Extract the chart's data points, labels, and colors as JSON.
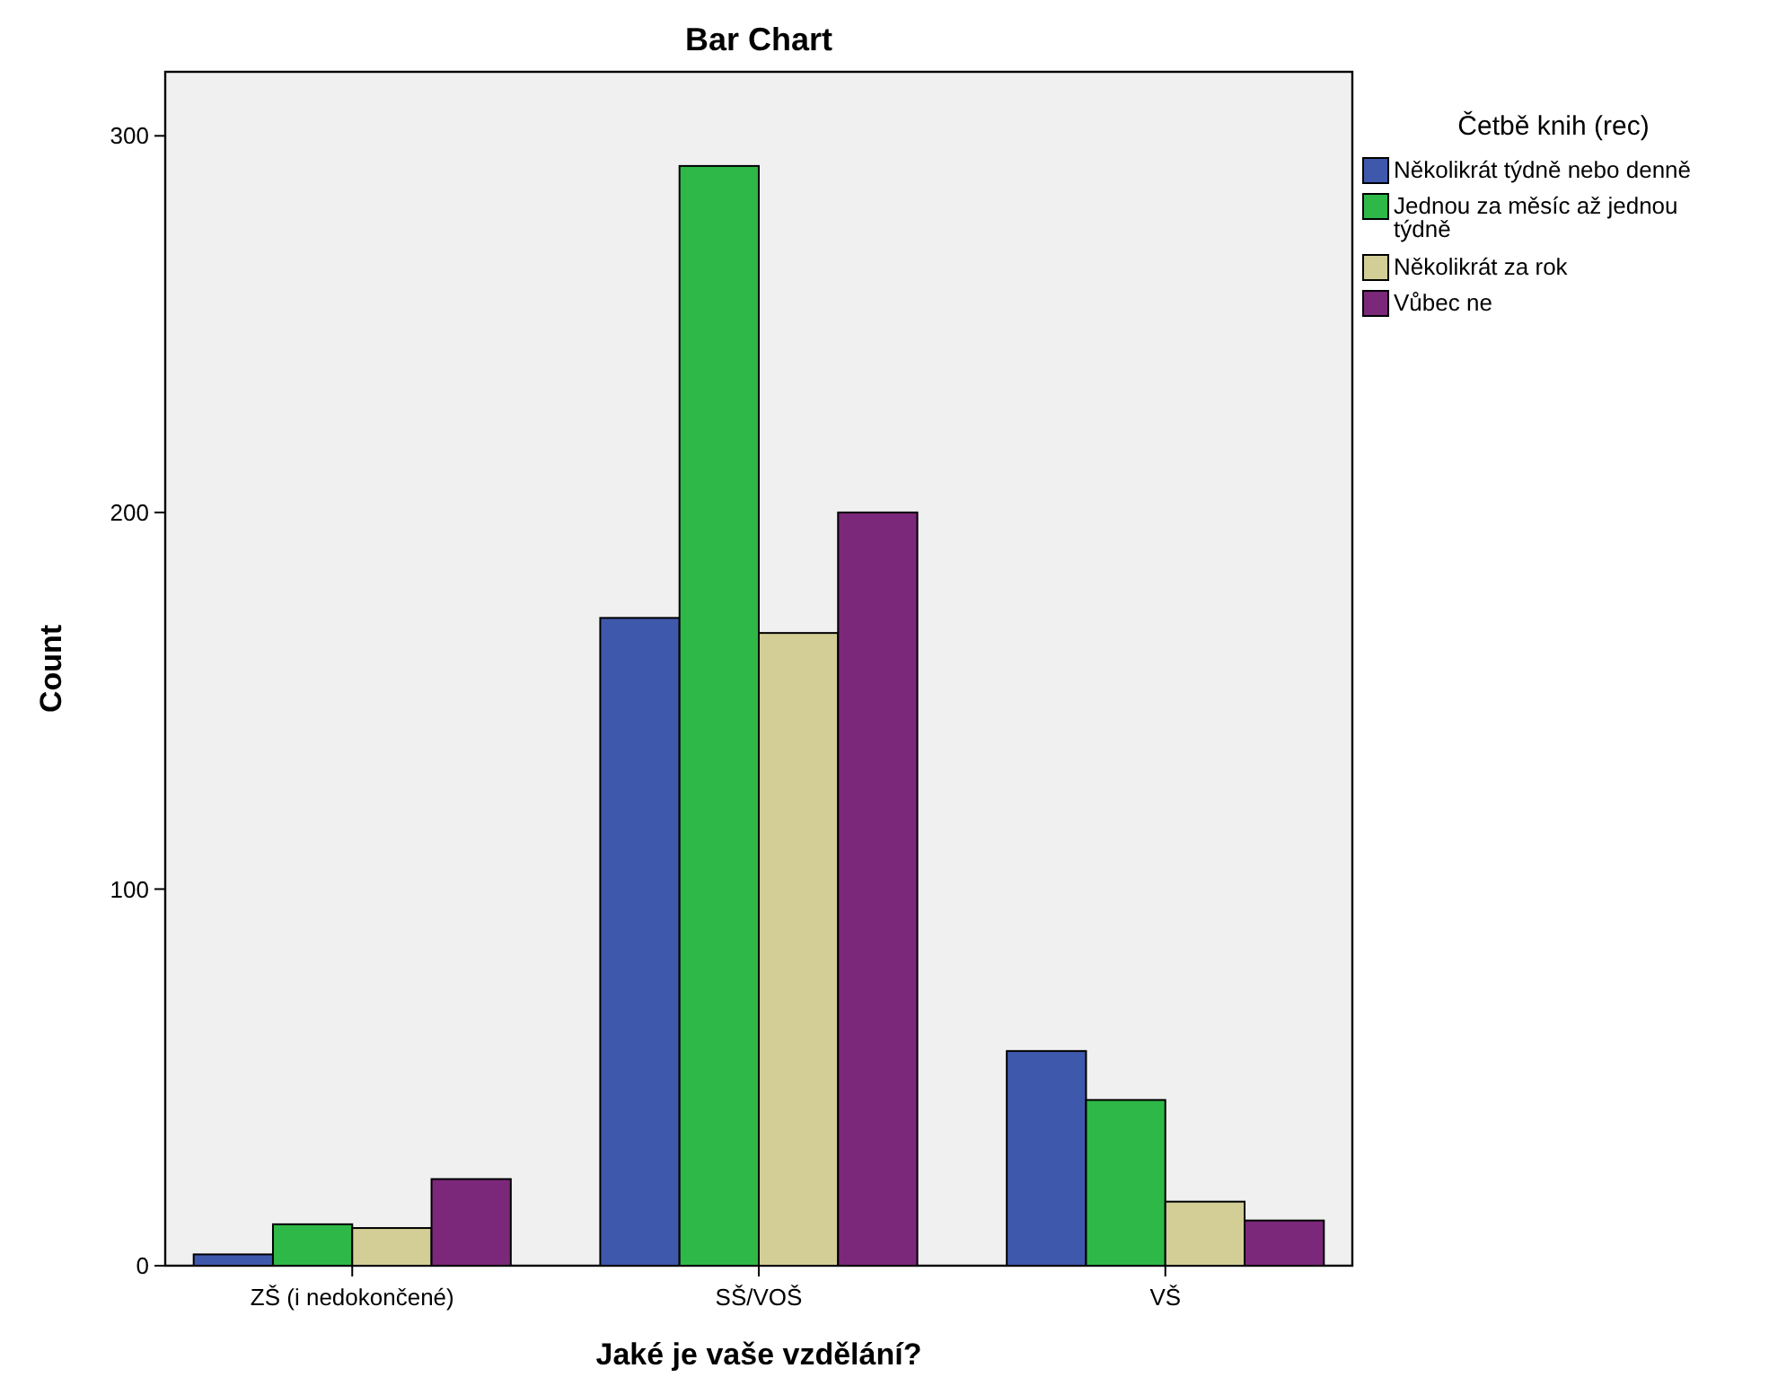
{
  "chart_data": {
    "type": "bar",
    "title": "Bar Chart",
    "xlabel": "Jaké je vaše vzdělání?",
    "ylabel": "Count",
    "legend_title": "Četbě knih (rec)",
    "legend": "right",
    "categories": [
      "ZŠ (i nedokončené)",
      "SŠ/VOŠ",
      "VŠ"
    ],
    "series": [
      {
        "name": "Několikrát týdně nebo denně",
        "color": "#3e58ac",
        "values": [
          3,
          172,
          57
        ]
      },
      {
        "name": "Jednou za měsíc až jednou týdně",
        "color": "#2eb848",
        "values": [
          11,
          292,
          44
        ]
      },
      {
        "name": "Několikrát za rok",
        "color": "#d2ce96",
        "values": [
          10,
          168,
          17
        ]
      },
      {
        "name": "Vůbec ne",
        "color": "#7b287a",
        "values": [
          23,
          200,
          12
        ]
      }
    ],
    "ylim": [
      0,
      317
    ],
    "yticks": [
      0,
      100,
      200,
      300
    ],
    "grid": false
  }
}
